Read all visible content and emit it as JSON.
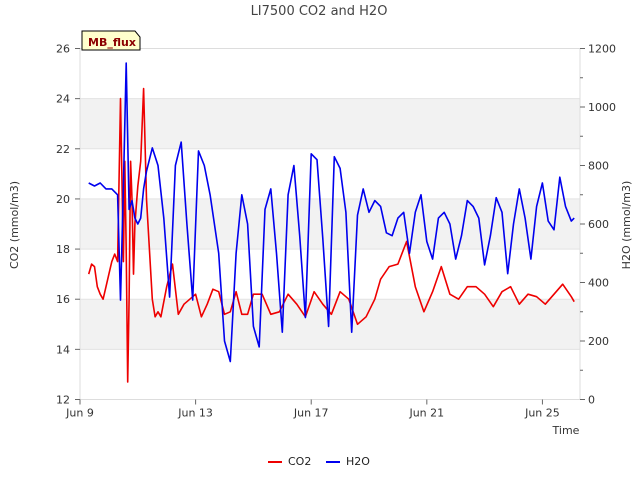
{
  "chart_data": {
    "type": "line",
    "title": "LI7500 CO2 and H2O",
    "badge": "MB_flux",
    "xlabel": "Time",
    "ylabel_left": "CO2 (mmol/m3)",
    "ylabel_right": "H2O (mmol/m3)",
    "xlim": [
      9,
      26.3
    ],
    "ylim_left": [
      12,
      26
    ],
    "ylim_right": [
      0,
      1200
    ],
    "x_ticks": [
      {
        "value": 9,
        "label": "Jun 9"
      },
      {
        "value": 13,
        "label": "Jun 13"
      },
      {
        "value": 17,
        "label": "Jun 17"
      },
      {
        "value": 21,
        "label": "Jun 21"
      },
      {
        "value": 25,
        "label": "Jun 25"
      }
    ],
    "y_ticks_left": [
      {
        "value": 12,
        "label": "12"
      },
      {
        "value": 14,
        "label": "14"
      },
      {
        "value": 16,
        "label": "16"
      },
      {
        "value": 18,
        "label": "18"
      },
      {
        "value": 20,
        "label": "20"
      },
      {
        "value": 22,
        "label": "22"
      },
      {
        "value": 24,
        "label": "24"
      },
      {
        "value": 26,
        "label": "26"
      }
    ],
    "y_ticks_right": [
      {
        "value": 0,
        "label": "0"
      },
      {
        "value": 200,
        "label": "200"
      },
      {
        "value": 400,
        "label": "400"
      },
      {
        "value": 600,
        "label": "600"
      },
      {
        "value": 800,
        "label": "800"
      },
      {
        "value": 1000,
        "label": "1000"
      },
      {
        "value": 1200,
        "label": "1200"
      }
    ],
    "grid": true,
    "legend_position": "bottom-center",
    "series": [
      {
        "name": "CO2",
        "color": "#ee0000",
        "axis": "left",
        "x": [
          9.3,
          9.4,
          9.5,
          9.6,
          9.7,
          9.8,
          9.9,
          10.0,
          10.1,
          10.2,
          10.3,
          10.4,
          10.5,
          10.55,
          10.6,
          10.65,
          10.7,
          10.75,
          10.8,
          10.85,
          10.9,
          11.0,
          11.1,
          11.2,
          11.3,
          11.4,
          11.5,
          11.6,
          11.7,
          11.8,
          12.0,
          12.2,
          12.4,
          12.6,
          12.8,
          13.0,
          13.2,
          13.4,
          13.6,
          13.8,
          14.0,
          14.2,
          14.4,
          14.6,
          14.8,
          15.0,
          15.3,
          15.6,
          15.9,
          16.2,
          16.5,
          16.8,
          17.1,
          17.4,
          17.7,
          18.0,
          18.3,
          18.6,
          18.9,
          19.2,
          19.4,
          19.7,
          20.0,
          20.3,
          20.6,
          20.9,
          21.2,
          21.5,
          21.8,
          22.1,
          22.4,
          22.7,
          23.0,
          23.3,
          23.6,
          23.9,
          24.2,
          24.5,
          24.8,
          25.1,
          25.4,
          25.7,
          26.0,
          26.1
        ],
        "values": [
          17.0,
          17.4,
          17.3,
          16.5,
          16.2,
          16.0,
          16.5,
          17.0,
          17.5,
          17.8,
          17.5,
          24.0,
          17.5,
          21.5,
          18.0,
          12.7,
          16.0,
          21.5,
          20.0,
          17.0,
          19.0,
          20.5,
          21.5,
          24.4,
          20.0,
          18.0,
          16.0,
          15.3,
          15.5,
          15.3,
          16.5,
          17.4,
          15.4,
          15.8,
          16.0,
          16.2,
          15.3,
          15.8,
          16.4,
          16.3,
          15.4,
          15.5,
          16.3,
          15.4,
          15.4,
          16.2,
          16.2,
          15.4,
          15.5,
          16.2,
          15.8,
          15.3,
          16.3,
          15.8,
          15.4,
          16.3,
          16.0,
          15.0,
          15.3,
          16.0,
          16.8,
          17.3,
          17.4,
          18.3,
          16.5,
          15.5,
          16.3,
          17.3,
          16.2,
          16.0,
          16.5,
          16.5,
          16.2,
          15.7,
          16.3,
          16.5,
          15.8,
          16.2,
          16.1,
          15.8,
          16.2,
          16.6,
          16.1,
          15.9
        ]
      },
      {
        "name": "H2O",
        "color": "#0000ee",
        "axis": "right",
        "x": [
          9.3,
          9.5,
          9.7,
          9.9,
          10.1,
          10.3,
          10.4,
          10.5,
          10.6,
          10.7,
          10.8,
          10.9,
          11.0,
          11.1,
          11.2,
          11.3,
          11.5,
          11.7,
          11.9,
          12.1,
          12.3,
          12.5,
          12.7,
          12.9,
          13.1,
          13.3,
          13.5,
          13.8,
          14.0,
          14.2,
          14.4,
          14.6,
          14.8,
          15.0,
          15.2,
          15.4,
          15.6,
          15.8,
          16.0,
          16.2,
          16.4,
          16.6,
          16.8,
          17.0,
          17.2,
          17.4,
          17.6,
          17.8,
          18.0,
          18.2,
          18.4,
          18.6,
          18.8,
          19.0,
          19.2,
          19.4,
          19.6,
          19.8,
          20.0,
          20.2,
          20.4,
          20.6,
          20.8,
          21.0,
          21.2,
          21.4,
          21.6,
          21.8,
          22.0,
          22.2,
          22.4,
          22.6,
          22.8,
          23.0,
          23.2,
          23.4,
          23.6,
          23.8,
          24.0,
          24.2,
          24.4,
          24.6,
          24.8,
          25.0,
          25.2,
          25.4,
          25.6,
          25.8,
          26.0,
          26.1
        ],
        "values": [
          740,
          730,
          740,
          720,
          720,
          700,
          340,
          730,
          1150,
          650,
          680,
          620,
          600,
          620,
          720,
          780,
          860,
          800,
          620,
          350,
          800,
          880,
          600,
          340,
          850,
          800,
          700,
          500,
          200,
          130,
          500,
          700,
          600,
          250,
          180,
          650,
          720,
          500,
          230,
          700,
          800,
          560,
          280,
          840,
          820,
          550,
          250,
          830,
          790,
          640,
          230,
          630,
          720,
          640,
          680,
          660,
          570,
          560,
          620,
          640,
          500,
          640,
          700,
          540,
          480,
          620,
          640,
          600,
          480,
          560,
          680,
          660,
          620,
          460,
          560,
          690,
          640,
          430,
          600,
          720,
          620,
          480,
          660,
          740,
          610,
          580,
          760,
          660,
          610,
          620
        ]
      }
    ]
  },
  "legend": {
    "items": [
      {
        "label": "CO2",
        "color": "#ee0000"
      },
      {
        "label": "H2O",
        "color": "#0000ee"
      }
    ]
  }
}
